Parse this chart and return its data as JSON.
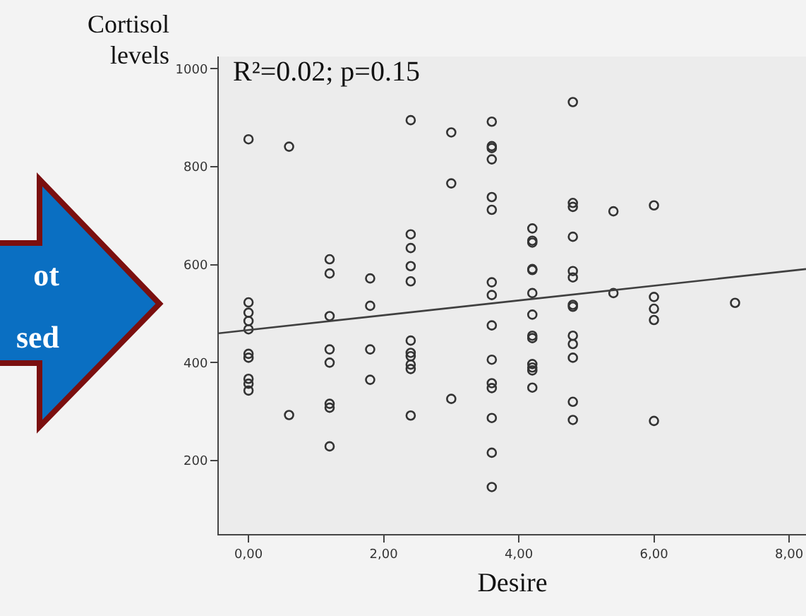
{
  "chart_data": {
    "type": "scatter",
    "xlabel": "Desire",
    "ylabel": "Cortisol levels",
    "annotations": [
      "R²=0.02; p=0.15",
      "ot",
      "sed"
    ],
    "xlim": [
      -0.44,
      8.25
    ],
    "ylim": [
      50,
      1025
    ],
    "xticks": [
      {
        "value": 0,
        "label": "0,00"
      },
      {
        "value": 2,
        "label": "2,00"
      },
      {
        "value": 4,
        "label": "4,00"
      },
      {
        "value": 6,
        "label": "6,00"
      },
      {
        "value": 8,
        "label": "8,00"
      }
    ],
    "yticks": [
      200,
      400,
      600,
      800,
      1000
    ],
    "grid": false,
    "marker": "circle",
    "series": [
      {
        "color": "#333333",
        "x": [
          0,
          0,
          0,
          0,
          0,
          0,
          0,
          0,
          0,
          0,
          0.6,
          0.6,
          1.2,
          1.2,
          1.2,
          1.2,
          1.2,
          1.2,
          1.2,
          1.2,
          1.8,
          1.8,
          1.8,
          1.8,
          2.4,
          2.4,
          2.4,
          2.4,
          2.4,
          2.4,
          2.4,
          2.4,
          2.4,
          2.4,
          2.4,
          3.0,
          3.0,
          3.0,
          3.6,
          3.6,
          3.6,
          3.6,
          3.6,
          3.6,
          3.6,
          3.6,
          3.6,
          3.6,
          3.6,
          3.6,
          3.6,
          3.6,
          3.6,
          4.2,
          4.2,
          4.2,
          4.2,
          4.2,
          4.2,
          4.2,
          4.2,
          4.2,
          4.2,
          4.2,
          4.2,
          4.2,
          4.8,
          4.8,
          4.8,
          4.8,
          4.8,
          4.8,
          4.8,
          4.8,
          4.8,
          4.8,
          4.8,
          4.8,
          4.8,
          5.4,
          5.4,
          6.0,
          6.0,
          6.0,
          6.0,
          6.0,
          7.2
        ],
        "values": [
          856,
          523,
          502,
          485,
          468,
          418,
          410,
          367,
          357,
          343,
          841,
          293,
          611,
          582,
          495,
          427,
          400,
          316,
          308,
          229,
          572,
          516,
          427,
          365,
          895,
          662,
          634,
          597,
          566,
          445,
          420,
          413,
          396,
          387,
          292,
          870,
          766,
          326,
          892,
          842,
          838,
          815,
          738,
          712,
          564,
          538,
          476,
          406,
          358,
          348,
          287,
          216,
          146,
          674,
          649,
          645,
          591,
          589,
          542,
          498,
          455,
          450,
          397,
          390,
          384,
          349,
          932,
          726,
          718,
          657,
          587,
          574,
          518,
          514,
          455,
          438,
          410,
          320,
          283,
          709,
          542,
          721,
          534,
          510,
          487,
          281,
          522
        ]
      },
      {
        "type": "line",
        "color": "#404040",
        "marker": "none",
        "x": [
          -0.44,
          8.25
        ],
        "values": [
          460,
          591
        ]
      }
    ]
  }
}
